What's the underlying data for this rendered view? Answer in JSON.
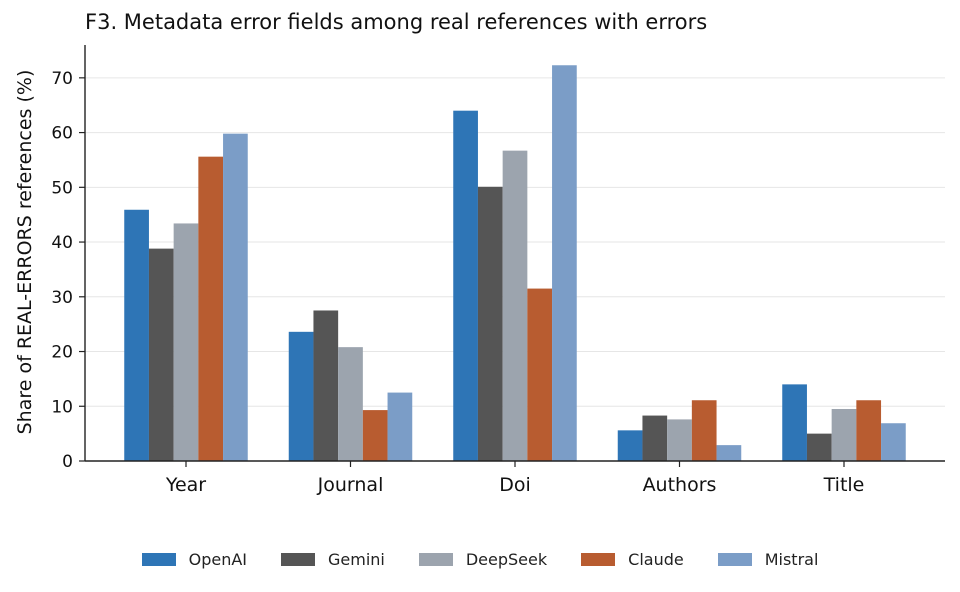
{
  "chart_data": {
    "type": "bar",
    "title": "F3. Metadata error fields among real references with errors",
    "xlabel": "",
    "ylabel": "Share of REAL-ERRORS references (%)",
    "ylim": [
      0,
      76
    ],
    "yticks": [
      0,
      10,
      20,
      30,
      40,
      50,
      60,
      70
    ],
    "grid": "horizontal",
    "legend_position": "bottom-center",
    "categories": [
      "Year",
      "Journal",
      "Doi",
      "Authors",
      "Title"
    ],
    "series": [
      {
        "name": "OpenAI",
        "color": "#2e75b6",
        "values": [
          45.9,
          23.6,
          64.0,
          5.6,
          14.0
        ]
      },
      {
        "name": "Gemini",
        "color": "#555555",
        "values": [
          38.8,
          27.5,
          50.1,
          8.3,
          5.0
        ]
      },
      {
        "name": "DeepSeek",
        "color": "#9ca4ae",
        "values": [
          43.4,
          20.8,
          56.7,
          7.6,
          9.5
        ]
      },
      {
        "name": "Claude",
        "color": "#b85c30",
        "values": [
          55.6,
          9.3,
          31.5,
          11.1,
          11.1
        ]
      },
      {
        "name": "Mistral",
        "color": "#7b9dc7",
        "values": [
          59.8,
          12.5,
          72.3,
          2.9,
          6.9
        ]
      }
    ]
  }
}
